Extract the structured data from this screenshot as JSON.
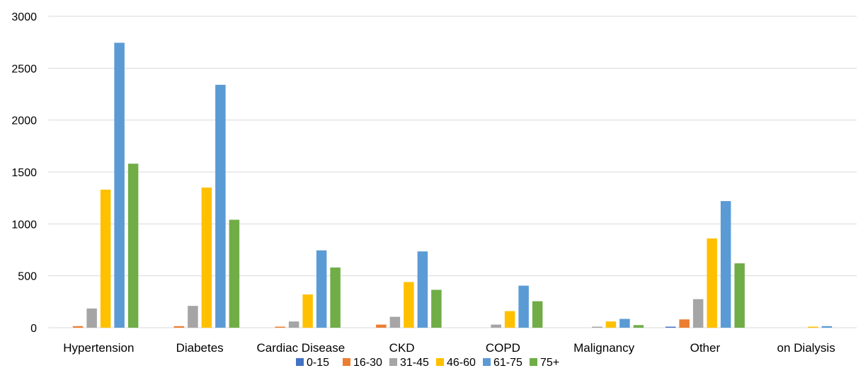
{
  "chart_data": {
    "type": "bar",
    "title": "",
    "xlabel": "",
    "ylabel": "",
    "ylim": [
      0,
      3000
    ],
    "yticks": [
      0,
      500,
      1000,
      1500,
      2000,
      2500,
      3000
    ],
    "grid": true,
    "legend_position": "bottom",
    "categories": [
      "Hypertension",
      "Diabetes",
      "Cardiac Disease",
      "CKD",
      "COPD",
      "Malignancy",
      "Other",
      "on Dialysis"
    ],
    "series": [
      {
        "name": "0-15",
        "color": "#4472c4",
        "values": [
          0,
          0,
          0,
          0,
          0,
          0,
          10,
          0
        ]
      },
      {
        "name": "16-30",
        "color": "#ed7d31",
        "values": [
          15,
          15,
          10,
          30,
          0,
          0,
          80,
          0
        ]
      },
      {
        "name": "31-45",
        "color": "#a5a5a5",
        "values": [
          185,
          210,
          60,
          105,
          30,
          10,
          275,
          0
        ]
      },
      {
        "name": "46-60",
        "color": "#ffc000",
        "values": [
          1330,
          1350,
          320,
          440,
          160,
          60,
          860,
          10
        ]
      },
      {
        "name": "61-75",
        "color": "#5b9bd5",
        "values": [
          2745,
          2340,
          745,
          735,
          405,
          85,
          1220,
          15
        ]
      },
      {
        "name": "75+",
        "color": "#70ad47",
        "values": [
          1580,
          1040,
          580,
          365,
          255,
          25,
          620,
          0
        ]
      }
    ]
  }
}
